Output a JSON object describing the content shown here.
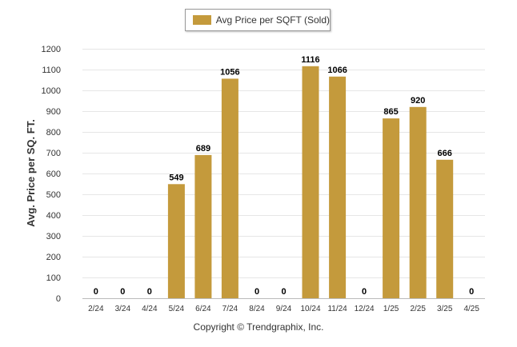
{
  "chart_data": {
    "type": "bar",
    "categories": [
      "2/24",
      "3/24",
      "4/24",
      "5/24",
      "6/24",
      "7/24",
      "8/24",
      "9/24",
      "10/24",
      "11/24",
      "12/24",
      "1/25",
      "2/25",
      "3/25",
      "4/25"
    ],
    "series": [
      {
        "name": "Avg Price per SQFT (Sold)",
        "values": [
          0,
          0,
          0,
          549,
          689,
          1056,
          0,
          0,
          1116,
          1066,
          0,
          865,
          920,
          666,
          0
        ],
        "color": "#c49a3c"
      }
    ],
    "ylabel": "Avg. Price per SQ. FT.",
    "xlabel": "",
    "ylim": [
      0,
      1200
    ],
    "yticks": [
      0,
      100,
      200,
      300,
      400,
      500,
      600,
      700,
      800,
      900,
      1000,
      1100,
      1200
    ],
    "grid": true,
    "legend_position": "top-center",
    "data_labels": true
  },
  "footer": {
    "copyright": "Copyright © Trendgraphix, Inc."
  }
}
